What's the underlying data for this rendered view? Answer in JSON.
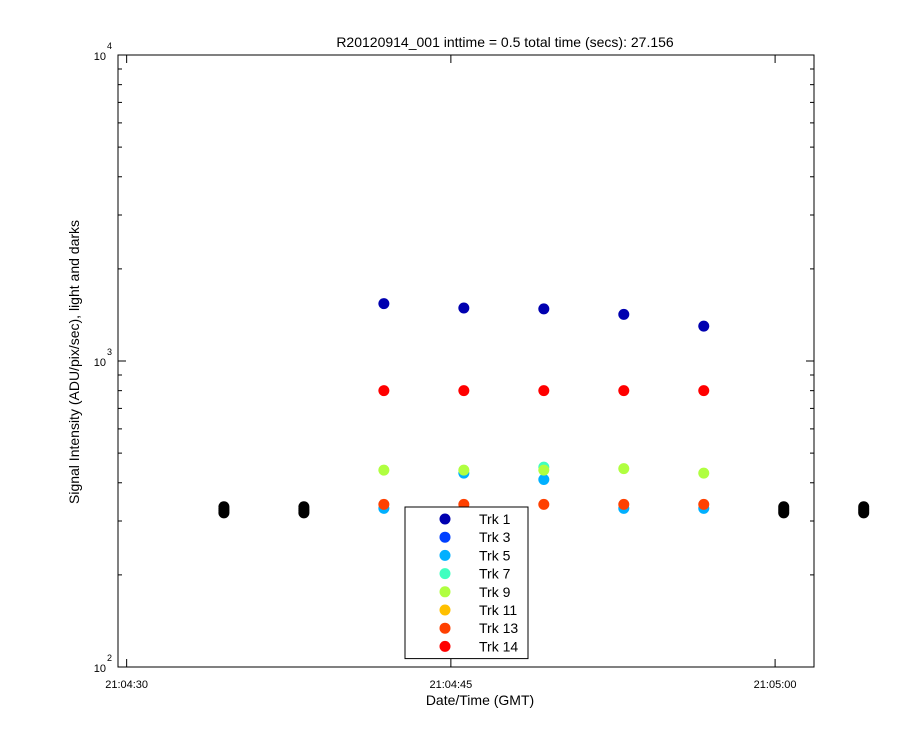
{
  "chart_data": {
    "type": "scatter",
    "title": "R20120914_001 inttime = 0.5 total time (secs): 27.156",
    "xlabel": "Date/Time (GMT)",
    "ylabel": "Signal Intensity (ADU/pix/sec), light and darks",
    "y_scale": "log",
    "ylim": [
      100,
      10000
    ],
    "xlim": [
      "21:04:29.6",
      "21:05:01.8"
    ],
    "x_ticks": [
      "21:04:30",
      "21:04:45",
      "21:05:00"
    ],
    "y_ticks": [
      {
        "base": "10",
        "exp": "2",
        "value": 100
      },
      {
        "base": "10",
        "exp": "3",
        "value": 1000
      },
      {
        "base": "10",
        "exp": "4",
        "value": 10000
      }
    ],
    "legend_position": "bottom-center",
    "series": [
      {
        "name": "Trk 1",
        "color": "#0000b0",
        "x": [
          "21:04:41.9",
          "21:04:45.6",
          "21:04:49.3",
          "21:04:53.0",
          "21:04:56.7"
        ],
        "y": [
          1540,
          1490,
          1480,
          1420,
          1300
        ]
      },
      {
        "name": "Trk 3",
        "color": "#0040ff",
        "x": [],
        "y": []
      },
      {
        "name": "Trk 5",
        "color": "#00b0ff",
        "x": [
          "21:04:41.9",
          "21:04:45.6",
          "21:04:49.3",
          "21:04:53.0",
          "21:04:56.7"
        ],
        "y": [
          330,
          430,
          410,
          330,
          330
        ]
      },
      {
        "name": "Trk 7",
        "color": "#40ffc0",
        "x": [
          "21:04:49.3"
        ],
        "y": [
          450
        ]
      },
      {
        "name": "Trk 9",
        "color": "#b0ff40",
        "x": [
          "21:04:41.9",
          "21:04:45.6",
          "21:04:49.3",
          "21:04:53.0",
          "21:04:56.7"
        ],
        "y": [
          440,
          440,
          440,
          445,
          430
        ]
      },
      {
        "name": "Trk 11",
        "color": "#ffc000",
        "x": [],
        "y": []
      },
      {
        "name": "Trk 13",
        "color": "#ff4000",
        "x": [
          "21:04:41.9",
          "21:04:45.6",
          "21:04:49.3",
          "21:04:53.0",
          "21:04:56.7"
        ],
        "y": [
          340,
          340,
          340,
          340,
          340
        ]
      },
      {
        "name": "Trk 14",
        "color": "#ff0000",
        "x": [
          "21:04:41.9",
          "21:04:45.6",
          "21:04:49.3",
          "21:04:53.0",
          "21:04:56.7"
        ],
        "y": [
          800,
          800,
          800,
          800,
          800
        ]
      },
      {
        "name": "",
        "color": "#000000",
        "x": [
          "21:04:34.5",
          "21:04:34.5",
          "21:04:34.5",
          "21:04:34.5",
          "21:04:38.2",
          "21:04:38.2",
          "21:04:38.2",
          "21:04:38.2",
          "21:05:00.4",
          "21:05:00.4",
          "21:05:00.4",
          "21:05:00.4",
          "21:05:04.1",
          "21:05:04.1",
          "21:05:04.1",
          "21:05:04.1"
        ],
        "y": [
          319,
          324,
          329,
          334,
          319,
          324,
          329,
          334,
          319,
          324,
          329,
          334,
          319,
          324,
          329,
          334
        ]
      }
    ]
  }
}
